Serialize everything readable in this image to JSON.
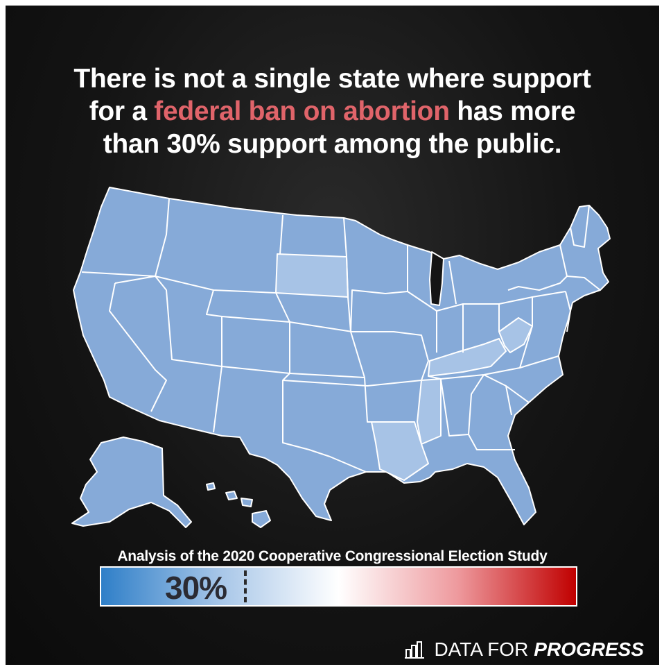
{
  "headline": {
    "line1": "There is not a single state where support",
    "line2_pre": "for a ",
    "line2_highlight": "federal ban on abortion",
    "line2_post": " has more",
    "line3": "than 30% support among the public."
  },
  "source_text": "Analysis of the 2020 Cooperative Congressional Election Study",
  "scale": {
    "marker_label": "30%",
    "marker_value": 0.3,
    "colors": {
      "low": "#2f7fc8",
      "mid": "#ffffff",
      "high": "#c00000"
    }
  },
  "brand": {
    "part1": "DATA FOR",
    "part2": "PROGRESS",
    "icon": "bar-chart-logo-icon"
  },
  "colors": {
    "highlight": "#e0646a",
    "map_fill": "#86aad8",
    "map_fill_light": "#a7c3e6",
    "map_fill_dark": "#7ca2d6",
    "state_border": "#ffffff",
    "background": "#141414"
  },
  "map": {
    "title": "",
    "region": "United States",
    "lighter_states": [
      "SD",
      "KY",
      "WV",
      "MS",
      "LA"
    ]
  }
}
